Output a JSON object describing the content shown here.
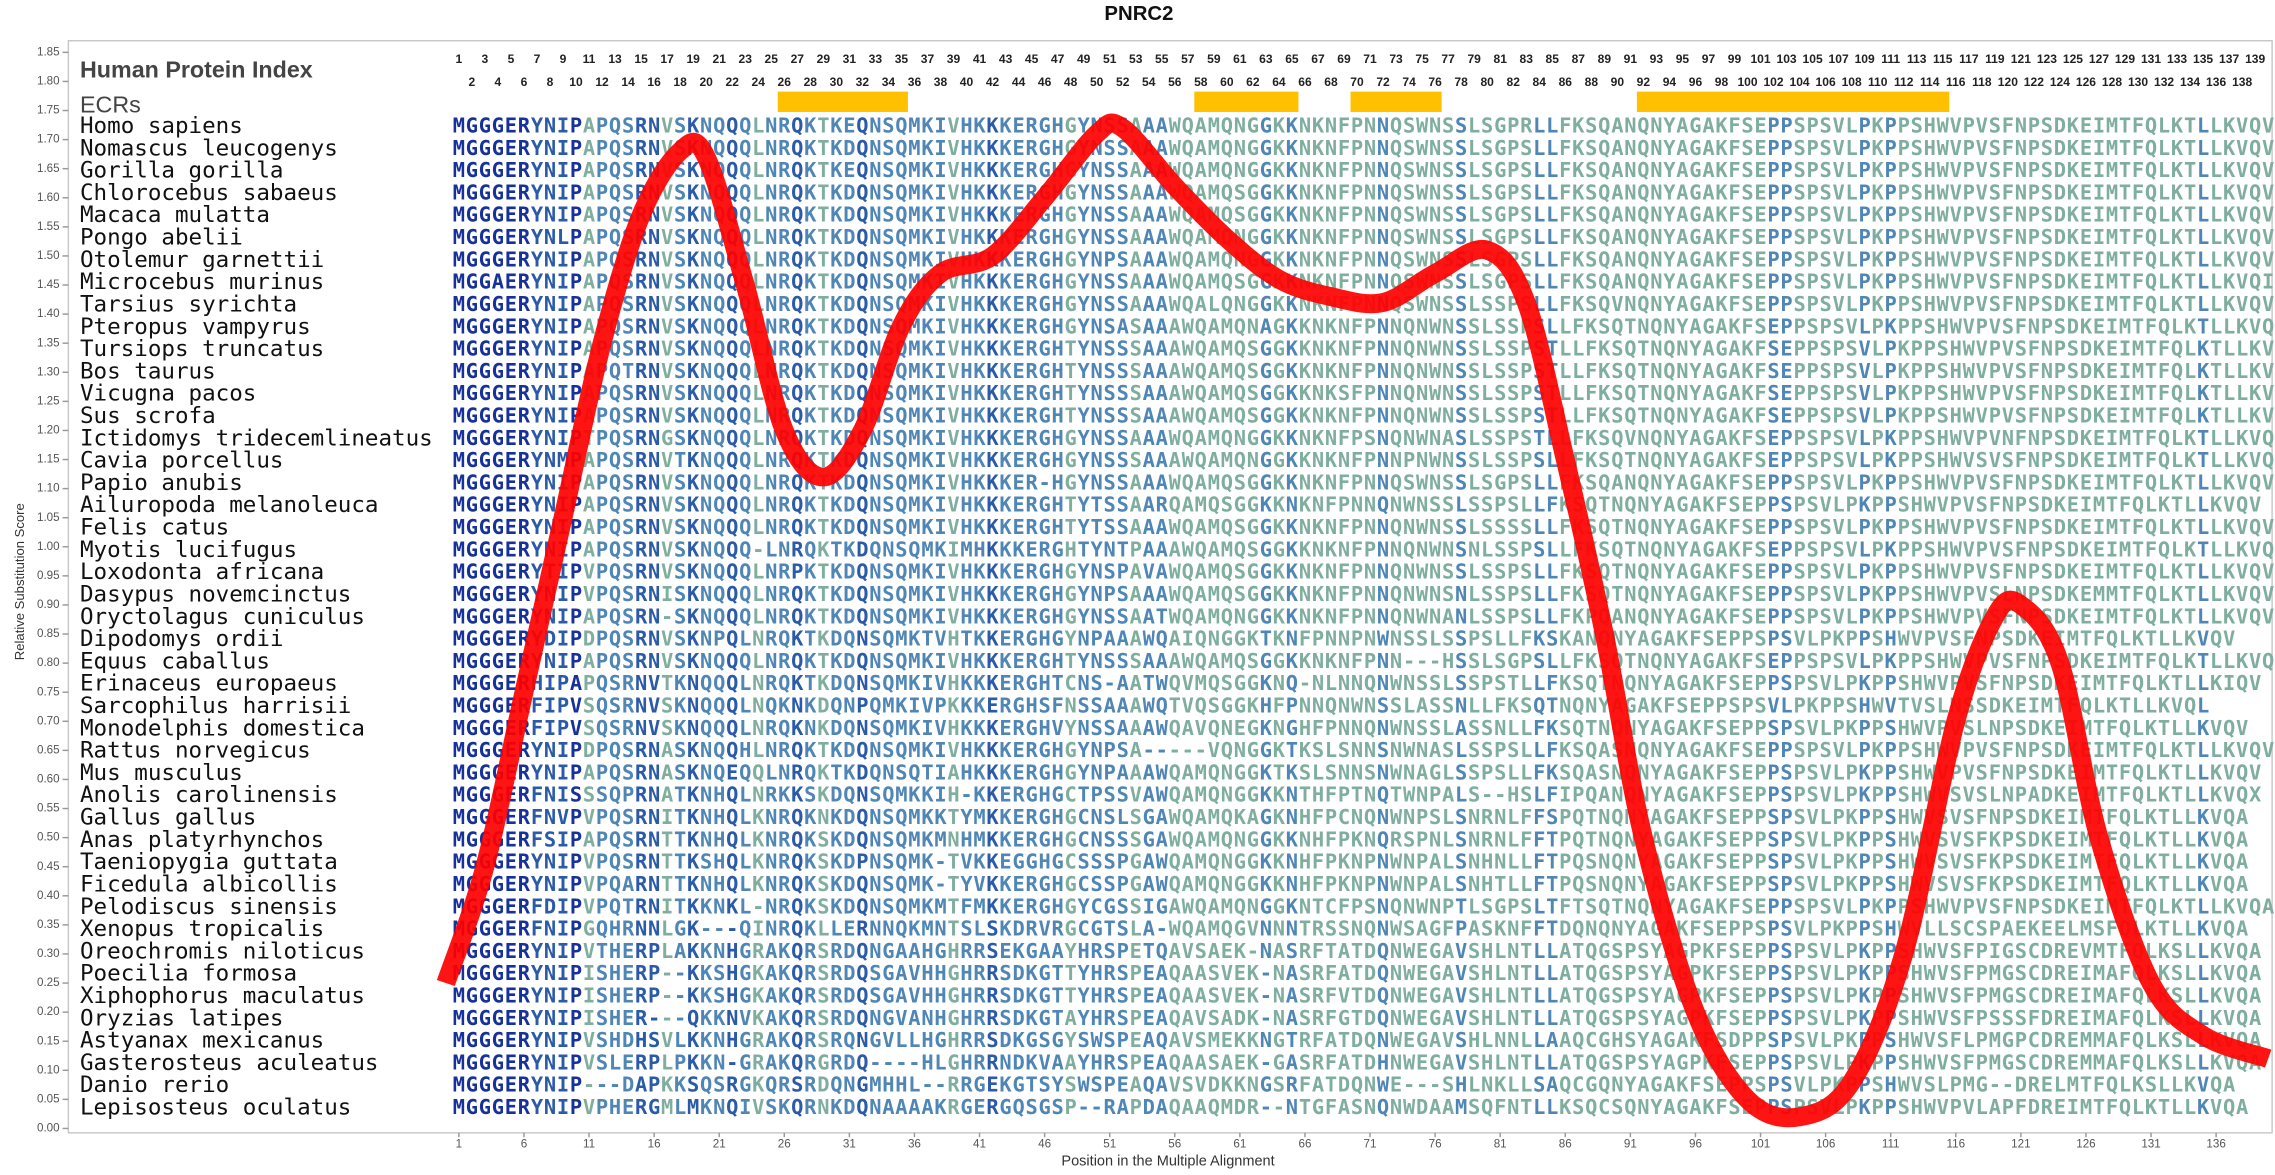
{
  "chart_data": {
    "type": "line",
    "title": "PNRC2",
    "xlabel": "Position in the Multiple Alignment",
    "ylabel": "Relative Substitution Score",
    "xlim": [
      -29,
      140.3
    ],
    "ylim": [
      0,
      1.85
    ],
    "xticks": [
      1,
      6,
      11,
      16,
      21,
      26,
      31,
      36,
      41,
      46,
      51,
      56,
      61,
      66,
      71,
      76,
      81,
      86,
      91,
      96,
      101,
      106,
      111,
      116,
      121,
      126,
      131,
      136
    ],
    "yticks": [
      {
        "value": 0,
        "label": "0.00"
      },
      {
        "value": 0.05,
        "label": "0.05"
      },
      {
        "value": 0.1,
        "label": "0.10"
      },
      {
        "value": 0.15,
        "label": "0.15"
      },
      {
        "value": 0.2,
        "label": "0.20"
      },
      {
        "value": 0.25,
        "label": "0.25"
      },
      {
        "value": 0.3,
        "label": "0.30"
      },
      {
        "value": 0.35,
        "label": "0.35"
      },
      {
        "value": 0.4,
        "label": "0.40"
      },
      {
        "value": 0.45,
        "label": "0.45"
      },
      {
        "value": 0.5,
        "label": "0.50"
      },
      {
        "value": 0.55,
        "label": "0.55"
      },
      {
        "value": 0.6,
        "label": "0.60"
      },
      {
        "value": 0.65,
        "label": "0.65"
      },
      {
        "value": 0.7,
        "label": "0.70"
      },
      {
        "value": 0.75,
        "label": "0.75"
      },
      {
        "value": 0.8,
        "label": "0.80"
      },
      {
        "value": 0.85,
        "label": "0.85"
      },
      {
        "value": 0.9,
        "label": "0.90"
      },
      {
        "value": 0.95,
        "label": "0.95"
      },
      {
        "value": 1,
        "label": "1.00"
      },
      {
        "value": 1.05,
        "label": "1.05"
      },
      {
        "value": 1.1,
        "label": "1.10"
      },
      {
        "value": 1.15,
        "label": "1.15"
      },
      {
        "value": 1.2,
        "label": "1.20"
      },
      {
        "value": 1.25,
        "label": "1.25"
      },
      {
        "value": 1.3,
        "label": "1.30"
      },
      {
        "value": 1.35,
        "label": "1.35"
      },
      {
        "value": 1.4,
        "label": "1.40"
      },
      {
        "value": 1.45,
        "label": "1.45"
      },
      {
        "value": 1.5,
        "label": "1.50"
      },
      {
        "value": 1.55,
        "label": "1.55"
      },
      {
        "value": 1.6,
        "label": "1.60"
      },
      {
        "value": 1.65,
        "label": "1.65"
      },
      {
        "value": 1.7,
        "label": "1.70"
      },
      {
        "value": 1.75,
        "label": "1.75"
      },
      {
        "value": 1.8,
        "label": "1.80"
      },
      {
        "value": 1.85,
        "label": "1.85"
      }
    ],
    "x": [
      0,
      3,
      6,
      9,
      12,
      15,
      18,
      20,
      23,
      26,
      29,
      32,
      35,
      38,
      42,
      46,
      50,
      52,
      56,
      60,
      64,
      68,
      72,
      76,
      80,
      83,
      86,
      89,
      92,
      96,
      100,
      104,
      108,
      112,
      116,
      119,
      121,
      124,
      127,
      131,
      135,
      140
    ],
    "values": [
      0.25,
      0.45,
      0.75,
      1.05,
      1.35,
      1.57,
      1.68,
      1.67,
      1.45,
      1.2,
      1.12,
      1.2,
      1.38,
      1.47,
      1.5,
      1.6,
      1.71,
      1.72,
      1.62,
      1.53,
      1.46,
      1.43,
      1.42,
      1.47,
      1.51,
      1.42,
      1.15,
      0.85,
      0.5,
      0.2,
      0.05,
      0.02,
      0.08,
      0.3,
      0.7,
      0.88,
      0.9,
      0.8,
      0.5,
      0.25,
      0.16,
      0.12
    ],
    "color": "#ff0000"
  },
  "alignment": {
    "index_label": "Human Protein Index",
    "ecr_label": "ECRs",
    "ecr_color": "#ffc000",
    "index": [
      1,
      2,
      3,
      4,
      5,
      6,
      7,
      8,
      9,
      10,
      11,
      12,
      13,
      14,
      15,
      16,
      17,
      18,
      19,
      20,
      21,
      22,
      23,
      24,
      25,
      26,
      27,
      28,
      29,
      30,
      31,
      32,
      33,
      34,
      35,
      36,
      37,
      38,
      39,
      40,
      41,
      42,
      43,
      44,
      45,
      46,
      47,
      48,
      49,
      50,
      51,
      52,
      53,
      54,
      55,
      56,
      57,
      58,
      59,
      60,
      61,
      62,
      63,
      64,
      65,
      66,
      67,
      68,
      69,
      70,
      71,
      72,
      73,
      74,
      75,
      76,
      77,
      78,
      79,
      80,
      81,
      82,
      83,
      84,
      85,
      86,
      87,
      88,
      89,
      90,
      91,
      92,
      93,
      94,
      95,
      96,
      97,
      98,
      99,
      100,
      101,
      102,
      103,
      104,
      105,
      106,
      107,
      108,
      109,
      110,
      111,
      112,
      113,
      114,
      115,
      116,
      117,
      118,
      119,
      120,
      121,
      122,
      123,
      124,
      125,
      126,
      127,
      128,
      129,
      130,
      131,
      132,
      133,
      134,
      135,
      136,
      137,
      138,
      139
    ],
    "ecrs": [
      [
        26,
        35
      ],
      [
        58,
        65
      ],
      [
        70,
        76
      ],
      [
        92,
        115
      ]
    ],
    "species": [
      "Homo sapiens",
      "Nomascus leucogenys",
      "Gorilla gorilla",
      "Chlorocebus sabaeus",
      "Macaca mulatta",
      "Pongo abelii",
      "Otolemur garnettii",
      "Microcebus murinus",
      "Tarsius syrichta",
      "Pteropus vampyrus",
      "Tursiops truncatus",
      "Bos taurus",
      "Vicugna pacos",
      "Sus scrofa",
      "Ictidomys tridecemlineatus",
      "Cavia porcellus",
      "Papio anubis",
      "Ailuropoda melanoleuca",
      "Felis catus",
      "Myotis lucifugus",
      "Loxodonta africana",
      "Dasypus novemcinctus",
      "Oryctolagus cuniculus",
      "Dipodomys ordii",
      "Equus caballus",
      "Erinaceus europaeus",
      "Sarcophilus harrisii",
      "Monodelphis domestica",
      "Rattus norvegicus",
      "Mus musculus",
      "Anolis carolinensis",
      "Gallus gallus",
      "Anas platyrhynchos",
      "Taeniopygia guttata",
      "Ficedula albicollis",
      "Pelodiscus sinensis",
      "Xenopus tropicalis",
      "Oreochromis niloticus",
      "Poecilia formosa",
      "Xiphophorus maculatus",
      "Oryzias latipes",
      "Astyanax mexicanus",
      "Gasterosteus aculeatus",
      "Danio rerio",
      "Lepisosteus oculatus"
    ],
    "sequences": [
      "MGGGERYNIPAPQSRNVSKNQQQLNRQKTKEQNSQMKIVHKKKERGHGYNSSAAAWQAMQNGGKKNKNFPNNQSWNSSLSGPRLLFKSQANQNYAGAKFSEPPSPSVLPKPPSHWVPVSFNPSDKEIMTFQLKTLLKVQV",
      "MGGGERYNIPAPQSRNVSKNQQQLNRQKTKDQNSQMKIVHKKKERGHGYNSSAAAWQAMQNGGKKNKNFPNNQSWNSSLSGPSLLFKSQANQNYAGAKFSEPPSPSVLPKPPSHWVPVSFNPSDKEIMTFQLKTLLKVQV",
      "MGGGERYNIPAPQSRNVSKNQQQLNRQKTKEQNSQMKIVHKKKERGHGYNSSAAAWQAMQNGGKKNKNFPNNQSWNSSLSGPSLLFKSQANQNYAGAKFSEPPSPSVLPKPPSHWVPVSFNPSDKEIMTFQLKTLLKVQV",
      "MGGGERYNIPAPQSRNVSKNQQQLNRQKTKDQNSQMKIVHKKKERGHGYNSSAAAWQAMQSGGKKNKNFPNNQSWNSSLSGPSLLFKSQANQNYAGAKFSEPPSPSVLPKPPSHWVPVSFNPSDKEIMTFQLKTLLKVQV",
      "MGGGERYNIPAPQSRNVSKNQQQLNRQKTKDQNSQMKIVHKKKERGHGYNSSAAAWQAMQSGGKKNKNFPNNQSWNSSLSGPSLLFKSQANQNYAGAKFSEPPSPSVLPKPPSHWVPVSFNPSDKEIMTFQLKTLLKVQV",
      "MGGGERYNLPAPQSRNVSKNQQQLNRQKTKDQNSQMKIVHKKKERGHGYNSSAAAWQAMQNGGKKNKNFPNNQSWNSSLSGPSLLFKSQANQNYAGAKFSEPPSPSVLPKPPSHWVPVSFNPSDKEIMTFQLKTLLKVQV",
      "MGGGERYNIPAPQSRNVSKNQQQLNRQKTKDQNSQMKIVHKKKERGHGYNPSAAAWQAMQNGGKKNKNFPNNQSWNSSLSGPSLLFKSQANQNYAGAKFSEPPSPSVLPKPPSHWVPVSFNPSDKEIMTFQLKTLLKVQV",
      "MGGAERYNIPAPQSRNVSKNQQQLNRQKTKDQNSQMKIVHKKKERGHGYNSSAAAWQAMQSGGKKNKNFPNNQSWNSSLSGPSLLFKSQANQNYAGAKFSEPPSPSVLPKPPSHWVPVSFNPSDKEIMTFQLKTLLKVQI",
      "MGGGERYNIPAPQSRNVSKNQQQLNRQKTKDQNSQMKIVHKKKERGHGYNSSAAAWQALQNGGKKNKNFPNNQSWNSSLSSPSLLFKSQVNQNYAGAKFSEPPSPSVLPKPPSHWVPVSFNPSDKEIMTFQLKTLLKVQV",
      "MGGGERYNIPAPQSRNVSKNQQQLNRQKTKDQNSQMKIVHKKKERGHGYNSASAAAWQAMQNAGKKNKNFPNNQNWNSSLSSPSLLFKSQTNQNYAGAKFSEPPSPSVLPKPPSHWVPVSFNPSDKEIMTFQLKTLLKVQV",
      "MGGGERYNIPAPQSRNVSKNQQQLNRQKTKDQNSQMKIVHKKKERGHTYNSSSAAAWQAMQSGGKKNKNFPNNQNWNSSLSSPSTLLFKSQTNQNYAGAKFSEPPSPSVLPKPPSHWVPVSFNPSDKEIMTFQLKTLLKVQV",
      "MGGGERYNIPAPQTRNVSKNQQQLNRQKTKDQNSQMKIVHKKKERGHTYNSSSAAAWQAMQSGGKKNKNFPNNQNWNSSLSSPSTLLFKSQTNQNYAGAKFSEPPSPSVLPKPPSHWVPVSFNPSDKEIMTFQLKTLLKVQV",
      "MGGGERYNIPAPQSRNVSKNQQQLNRQKTKDQNSQMKIVHKKKERGHTYNSSSAAAWQAMQSGGKKNKSFPNNQNWNSSLSSPSTLLFKSQTNQNYAGAKFSEPPSPSVLPKPPSHWVPVSFNPSDKEIMTFQLKTLLKVQV",
      "MGGGERYNIPAPQSRNVSKNQQQLNRQKTKDQNSQMKIVHKKKERGHTYNSSSAAAWQAMQSGGKKNKNFPNNQNWNSSLSSPSTLLFKSQTNQNYAGAKFSEPPSPSVLPKPPSHWVPVSFNPSDKEIMTFQLKTLLKVQV",
      "MGGGERYNIPTPQSRNGSKNQQQLNRQKTKDQNSQMKIVHKKKERGHGYNSSAAAWQAMQNGGKKNKNFPSNQNWNASLSSPSTLLFKSQVNQNYAGAKFSEPPSPSVLPKPPSHWVPVNFNPSDKEIMTFQLKTLLKVQV",
      "MGGGERYNMPAPQSRNVTKNQQQLNRQKTKDQNSQMKIVHKKKERGHGYNSSSAAAWQAMQNGGKKNKNFPNNPNWNSSLSSPSLLFKSQTNQNYAGAKFSEPPSPSVLPKPPSHWVSVSFNPSDKEIMTFQLKTLLKVQV",
      "MGGGERYNIPAPQSRNVSKNQQQLNRQKTKDQNSQMKIVHKKKER-HGYNSSAAAWQAMQSGGKKNKNFPNNQSWNSSLSGPSLLFKSQANQNYAGAKFSEPPSPSVLPKPPSHWVPVSFNPSDKEIMTFQLKTLLKVQV",
      "MGGGERYNIPAPQSRNVSKNQQQLNRQKTKDQNSQMKIVHKKKERGHTYTSSAARQAMQSGGKKNKNFPNNQNWNSSLSSPSLLFKSQTNQNYAGAKFSEPPSPSVLPKPPSHWVPVSFNPSDKEIMTFQLKTLLKVQV",
      "MGGGERYNIPAPQSRNVSKNQQQLNRQKTKDQNSQMKIVHKKKERGHTYTSSAAAWQAMQSGGKKNKNFPNNQNWNSSLSSSSLLFKSQTNQNYAGAKFSEPPSPSVLPKPPSHWVPVSFNPSDKEIMTFQLKTLLKVQV",
      "MGGGERYNIPAPQSRNVSKNQQQ-LNRQKTKDQNSQMKIMHKKKERGHTYNTPAAAWQAMQSGGKKNKNFPNNQNWNSNLSSPSLLFKSQTNQNYAGAKFSEPPSPSVLPKPPSHWVPVSFNPSDKEIMTFQLKTLLKVQV",
      "MGGGERYTIPVPQSRNVSKNQQQLNRPKTKDQNSQMKIVHKKKERGHGYNSPAVAWQAMQSGGKKNKNFPNNQNWNSSLSSPSLLFKSQTNQNYAGAKFSEPPSPSVLPKPPSHWVPVSFNPSDKEIMTFQLKTLLKVQV",
      "MGGGERYNIPVPQSRNISKNQQQLNRQKTKDQNSQMKIVHKKKERGHGYNPSAAAWQAMQSGGKKNKNFPNNQNWNSNLSSPSLLFKSQTNQNYAGAKFSEPPSPSVLPKPPSHWVPVSLNPSDKEMMTFQLKTLLKVQV",
      "MGGGERYNIPAPQSRN-SKNQQQLNRQKTKDQNSQMKIVHKKKERGHGYNSSAATWQAMQNGGKKNKNFPNNQNWNANLSSPSLLFKPQANQNYAGAKFSEPPSPSVLPKPPSHWVPVSFNPSDKEIMTFQLKTLLKVQV",
      "MGGGERYDIPDPQSRNVSKNPQLNRQKTKDQNSQMKTVHTKKERGHGYNPAAAWQAIQNGGKTKNFPNNPNWNSSLSSPSLLFKSKANQNYAGAKFSEPPSPSVLPKPPSHWVPVSFNPSDKEIMTFQLKTLLKVQV",
      "MGGGERYNIPAPQSRNVSKNQQQLNRQKTKDQNSQMKIVHKKKERGHTYNSSSAAAWQAMQSGGKKNKNFPNN---HSSLSGPSLLFKSQTNQNYAGAKFSEPPSPSVLPKPPSHWVPVSFNPSDKEIMTFQLKTLLKVQV",
      "MGGGERHIPAPQSRNVTKNQQQLNRQKTKDQNSQMKIVHKKKERGHTCNS-AATWQVMQSGGKNQ-NLNNQNWNSSLSSPSTLLFKSQTNQNYAGAKFSEPPSPSVLPKPPSHWVPVSFNPSDKEIMTFQLKTLLKIQV",
      "MGGGERFIPVSQSRNVSKNQQQLNQKNKDQNPQMKIVPKKKERGHSFNSSAAAWQTVQSGGKHFPNNQNWNSSLASSNLLFKSQTNQNYAGAKFSEPPSPSVLPKPPSHWVTVSLNSSDKEIMTFQLKTLLKVQL",
      "MGGGERFIPVSQSRNVSKNQQQLNRQKNKDQNSQMKIVHKKKERGHVYNSSAAAWQAVQNEGKNGHFPNNQNWNSSLASSNLLFKSQTNQNYAGAKFSEPPSPSVLPKPPSHWVPVSLNPSDKEIMTFQLKTLLKVQV",
      "MGGGERYNIPDPQSRNASKNQQHLNRQKTKDQNSQMKIVHKKKERGHGYNPSA-----VQNGGKTKSLSNNSNWNASLSSPSLLFKSQASNQNYAGAKFSEPPSPSVLPKPPSHWVPVSFNPSDKEIMTFQLKTLLKVQV",
      "MGGGERYNIPAPQSRNASKNQEQQLNRQKTKDQNSQTIAHKKKERGHGYNPAAAWQAMQNGGKTKSLSNNSNWNAGLSSPSLLFKSQASNQNYAGAKFSEPPSPSVLPKPPSHWVPVSFNPSDKEIMTFQLKTLLKVQV",
      "MGGGERFNISSSQPRNATKNHQLNRKKSKDQNSQMKKIH-KKERGHGCTPSSVAWQAMQNGGKKNTHFPTNQTWNPALS--HSLFIPQANQNYAGAKFSEPPSPSVLPKPPSHWVSVSLNPADKEIMTFQLKTLLKVQX",
      "MGGGERFNVPVPQSRNITKNHQLKNRQKNKDQNSQMKKTYMKKERGHGCNSLSGAWQAMQKAGKNHFPCNQNWNPSLSNRNLFFSPQTNQNYAGAKFSEPPSPSVLPKPPSHWVSVSFNPSDKEIMTFQLKTLLKVQA",
      "MGGGERFSIPAPQSRNTTKNHQLKNRQKSKDQNSQMKMNHMKKERGHGCNSSSGAWQAMQNGGKKNHFPKNQRSPNLSNRNLFFTPQTNQNYAGAKFSEPPSPSVLPKPPSHWVSVSFKPSDKEIMTFQLKTLLKVQA",
      "MGGGERYNIPVPQSRNTTKSHQLKNRQKSKDPNSQMK-TVKKEGGHGCSSSPGAWQAMQNGGKKNHFPKNPNWNPALSNHNLLFTPQSNQNYAGAKFSEPPSPSVLPKPPSHWVSVSFKPSDKEIMTFQLKTLLKVQA",
      "MGGGERYNIPVPQARNTTKNHQLKNRQKSKDQNSQMK-TYVKKERGHGCSSPGAWQAMQNGGKKNHFPKNPNWNPALSNHTLLFTPQSNQNYAGAKFSEPPSPSVLPKPPSHWVSVSFKPSDKEIMTFQLKTLLKVQA",
      "MGGGERFDIPVPQTRNITKKNKL-NRQKSKDQNSQMKMTFMKKERGHGYCGSSIGAWQAMQNGGKNTCFPSNQNWNPTLSGPSLTFTSQTNQNYAGAKFSEPPSPSVLPKPPSHWVPVSFNPSDKEIMTFQLKTLLKVQA",
      "MGGGERFNIPGQHRNNLGK---QINRQKLLERNNQKMNTSLSKDRVRGCGTSLA-WQAMQGVNNNTRSSNQNWSAGFPASKNFFTDQNQNYAGAKFSEPPSPSVLPKPPSHWVLLSCSPAEKEELMSFQLKTLLKVQA",
      "MGGGERYNIPVTHERPLAKKNHGRAKQRSRDQNGAAHGHRRSEKGAAYHRSPETQAVSAEK-NASRFTATDQNWEGAVSHLNTLLATQGSPSYAGPKFSEPPSPSVLPKPPSHWVSFPIGSCDREVMTFQLKSLLKVQA",
      "MGGGERYNIPISHERP--KKSHGKAKQRSRDQSGAVHHGHRRSDKGTTYHRSPEAQAASVEK-NASRFATDQNWEGAVSHLNTLLATQGSPSYAGPKFSEPPSPSVLPKPPSHWVSFPMGSCDREIMAFQLKSLLKVQA",
      "MGGGERYNIPISHERP--KKSHGKAKQRSRDQSGAVHHGHRRSDKGTTYHRSPEAQAASVEK-NASRFVTDQNWEGAVSHLNTLLATQGSPSYAGPKFSEPPSPSVLPKPPSHWVSFPMGSCDREIMAFQLKSLLKVQA",
      "MGGGERYNIPISHER---QKKNVKAKQRSRDQNGVANHGHRRSDKGTAYHRSPEAQAVSADK-NASRFGTDQNWEGAVSHLNTLLATQGSPSYAGPKFSEPPSPSVLPKPPSHWVSFPSSSFDREIMAFQLKSLLKVQA",
      "MGGGERYNIPVSHDHSVLKKNHGRAKQRSRQNGVLLHGHRRSDKGSGYSWSPEAQAVSMEKKNGTRFATDQNWEGAVSHLNNLLAAQCGHSYAGAKFSDPPSPSVLPKPPSHWVSFLPMGPCDREMMAFQLKSLLKVQA",
      "MGGGERYNIPVSLERPLPKKN-GRAKQRGRDQ----HLGHRRNDKVAAYHRSPEAQAASAEK-GASRFATDHNWEGAVSHLNTLLATQGSPSYAGPKFSEPPSPSVLPKPPSHWVSFPMGSCDREMMAFQLKSLLKVQA",
      "MGGGERYNIP---DAPKKSQSRGKQRSRDQNGMHHL--RRGEKGTSYSWSPEAQAVSVDKKNGSRFATDQNWE---SHLNKLLSAQCGQNYAGAKFSEPPSPSVLPKPPSHWVSLPMG--DRELMTFQLKSLLKVQA",
      "MGGGERYNIPVPHERGMLMKNQIVSKQRNKDQNAAAAKRGERGQSGSP--RAPDAQAAQMDR--NTGFASNQNWDAAMSQFNTLLKSQCSQNYAGAKFSEPPSPSVLPKPPSHWVPVLAPFDREIMTFQLKTLLKVQA"
    ]
  }
}
